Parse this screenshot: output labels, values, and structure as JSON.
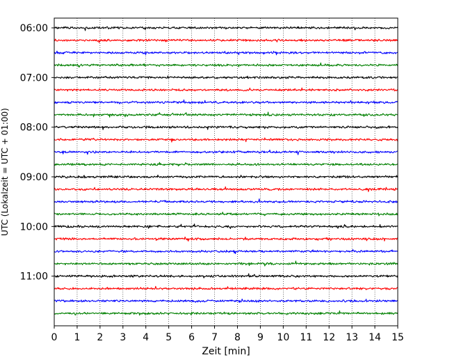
{
  "chart_data": {
    "type": "line",
    "title": "",
    "xlabel": "Zeit  [min]",
    "ylabel": "UTC (Lokalzeit = UTC + 01:00)",
    "xlim": [
      0,
      15
    ],
    "x_ticks": [
      0,
      1,
      2,
      3,
      4,
      5,
      6,
      7,
      8,
      9,
      10,
      11,
      12,
      13,
      14,
      15
    ],
    "y_tick_labels": [
      "06:00",
      "07:00",
      "08:00",
      "09:00",
      "10:00",
      "11:00"
    ],
    "ylim_start": "06:00",
    "ylim_end": "12:00",
    "row_interval_min": 15,
    "grid_x": true,
    "grid_style": "dotted",
    "series": [
      {
        "start": "06:00",
        "color": "#000000"
      },
      {
        "start": "06:15",
        "color": "#ff0000"
      },
      {
        "start": "06:30",
        "color": "#0000ff"
      },
      {
        "start": "06:45",
        "color": "#008000"
      },
      {
        "start": "07:00",
        "color": "#000000"
      },
      {
        "start": "07:15",
        "color": "#ff0000"
      },
      {
        "start": "07:30",
        "color": "#0000ff"
      },
      {
        "start": "07:45",
        "color": "#008000"
      },
      {
        "start": "08:00",
        "color": "#000000"
      },
      {
        "start": "08:15",
        "color": "#ff0000"
      },
      {
        "start": "08:30",
        "color": "#0000ff"
      },
      {
        "start": "08:45",
        "color": "#008000"
      },
      {
        "start": "09:00",
        "color": "#000000"
      },
      {
        "start": "09:15",
        "color": "#ff0000"
      },
      {
        "start": "09:30",
        "color": "#0000ff"
      },
      {
        "start": "09:45",
        "color": "#008000"
      },
      {
        "start": "10:00",
        "color": "#000000"
      },
      {
        "start": "10:15",
        "color": "#ff0000"
      },
      {
        "start": "10:30",
        "color": "#0000ff"
      },
      {
        "start": "10:45",
        "color": "#008000"
      },
      {
        "start": "11:00",
        "color": "#000000"
      },
      {
        "start": "11:15",
        "color": "#ff0000"
      },
      {
        "start": "11:30",
        "color": "#0000ff"
      },
      {
        "start": "11:45",
        "color": "#008000"
      }
    ]
  }
}
